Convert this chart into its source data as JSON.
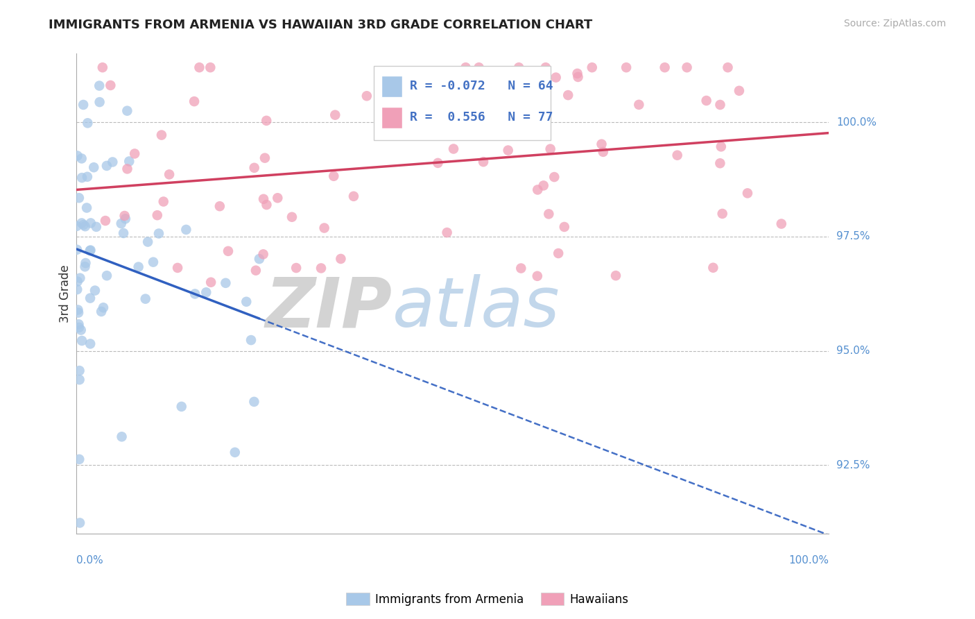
{
  "title": "IMMIGRANTS FROM ARMENIA VS HAWAIIAN 3RD GRADE CORRELATION CHART",
  "source_text": "Source: ZipAtlas.com",
  "ylabel": "3rd Grade",
  "xlim": [
    0.0,
    1.0
  ],
  "ylim": [
    91.0,
    101.5
  ],
  "yticks": [
    92.5,
    95.0,
    97.5,
    100.0
  ],
  "blue_color": "#a8c8e8",
  "pink_color": "#f0a0b8",
  "blue_line_color": "#3060c0",
  "pink_line_color": "#d04060",
  "blue_R": -0.072,
  "blue_N": 64,
  "pink_R": 0.556,
  "pink_N": 77,
  "legend_label_blue": "Immigrants from Armenia",
  "legend_label_pink": "Hawaiians",
  "watermark_zip": "ZIP",
  "watermark_atlas": "atlas"
}
